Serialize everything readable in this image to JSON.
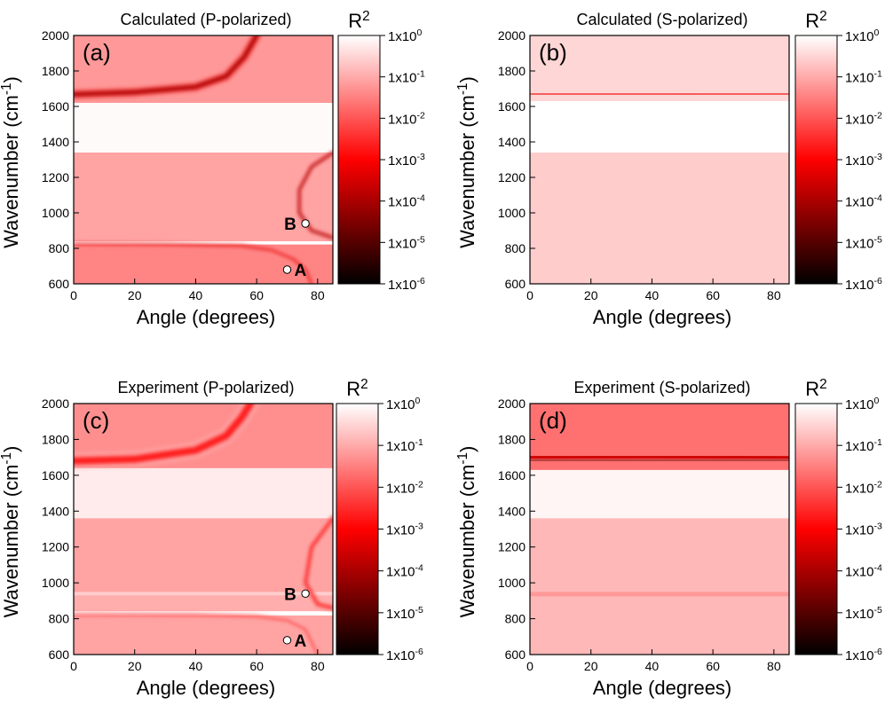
{
  "chart_data": [
    {
      "type": "heatmap",
      "panel_label": "(a)",
      "title": "Calculated (P-polarized)",
      "xlabel": "Angle (degrees)",
      "ylabel": "Wavenumber (cm",
      "ylabel_sup": "-1",
      "ylabel_end": ")",
      "xlim": [
        0,
        85
      ],
      "ylim": [
        600,
        2000
      ],
      "xticks": [
        0,
        20,
        40,
        60,
        80
      ],
      "yticks": [
        600,
        800,
        1000,
        1200,
        1400,
        1600,
        1800,
        2000
      ],
      "colorbar": {
        "title": "R",
        "title_sup": "2",
        "scale": "log",
        "range": [
          1e-06,
          1
        ],
        "ticks": [
          {
            "base": "1x10",
            "exp": "0"
          },
          {
            "base": "1x10",
            "exp": "-1"
          },
          {
            "base": "1x10",
            "exp": "-2"
          },
          {
            "base": "1x10",
            "exp": "-3"
          },
          {
            "base": "1x10",
            "exp": "-4"
          },
          {
            "base": "1x10",
            "exp": "-5"
          },
          {
            "base": "1x10",
            "exp": "-6"
          }
        ],
        "colors": [
          "#000000",
          "#ff0000",
          "#ffffff"
        ]
      },
      "bands": [
        {
          "y": [
            600,
            822
          ],
          "level": 0.76
        },
        {
          "y": [
            822,
            840
          ],
          "level": 1.0
        },
        {
          "y": [
            840,
            1340
          ],
          "level": 0.82
        },
        {
          "y": [
            1340,
            1620
          ],
          "level": 0.99
        },
        {
          "y": [
            1620,
            2000
          ],
          "level": 0.8
        }
      ],
      "features": [
        {
          "points": [
            [
              0,
              1668
            ],
            [
              20,
              1680
            ],
            [
              40,
              1710
            ],
            [
              50,
              1770
            ],
            [
              56,
              1880
            ],
            [
              60,
              2000
            ]
          ],
          "width": 26,
          "level": 0.35
        },
        {
          "points": [
            [
              0,
              826
            ],
            [
              30,
              823
            ],
            [
              55,
              815
            ],
            [
              65,
              790
            ],
            [
              72,
              740
            ],
            [
              76,
              680
            ],
            [
              78,
              600
            ]
          ],
          "width": 8,
          "level": 0.45
        },
        {
          "points": [
            [
              85,
              1340
            ],
            [
              78,
              1260
            ],
            [
              74,
              1130
            ],
            [
              74,
              1000
            ],
            [
              78,
              900
            ],
            [
              85,
              860
            ]
          ],
          "width": 8,
          "level": 0.3
        }
      ],
      "markers": [
        {
          "label": "A",
          "x": 70,
          "y": 680
        },
        {
          "label": "B",
          "x": 76,
          "y": 940
        }
      ]
    },
    {
      "type": "heatmap",
      "panel_label": "(b)",
      "title": "Calculated (S-polarized)",
      "xlabel": "Angle (degrees)",
      "ylabel": "Wavenumber (cm",
      "ylabel_sup": "-1",
      "ylabel_end": ")",
      "xlim": [
        0,
        85
      ],
      "ylim": [
        600,
        2000
      ],
      "xticks": [
        0,
        20,
        40,
        60,
        80
      ],
      "yticks": [
        600,
        800,
        1000,
        1200,
        1400,
        1600,
        1800,
        2000
      ],
      "colorbar": {
        "title": "R",
        "title_sup": "2",
        "scale": "log",
        "range": [
          1e-06,
          1
        ],
        "ticks": [
          {
            "base": "1x10",
            "exp": "0"
          },
          {
            "base": "1x10",
            "exp": "-1"
          },
          {
            "base": "1x10",
            "exp": "-2"
          },
          {
            "base": "1x10",
            "exp": "-3"
          },
          {
            "base": "1x10",
            "exp": "-4"
          },
          {
            "base": "1x10",
            "exp": "-5"
          },
          {
            "base": "1x10",
            "exp": "-6"
          }
        ],
        "colors": [
          "#000000",
          "#ff0000",
          "#ffffff"
        ]
      },
      "bands": [
        {
          "y": [
            600,
            1340
          ],
          "level": 0.9
        },
        {
          "y": [
            1340,
            1630
          ],
          "level": 1.0
        },
        {
          "y": [
            1630,
            2000
          ],
          "level": 0.92
        }
      ],
      "features": [
        {
          "points": [
            [
              0,
              1668
            ],
            [
              40,
              1668
            ],
            [
              70,
              1670
            ],
            [
              85,
              1672
            ]
          ],
          "width": 14,
          "level": 0.45
        }
      ],
      "markers": []
    },
    {
      "type": "heatmap",
      "panel_label": "(c)",
      "title": "Experiment (P-polarized)",
      "xlabel": "Angle (degrees)",
      "ylabel": "Wavenumber (cm",
      "ylabel_sup": "-1",
      "ylabel_end": ")",
      "xlim": [
        0,
        85
      ],
      "ylim": [
        600,
        2000
      ],
      "xticks": [
        0,
        20,
        40,
        60,
        80
      ],
      "yticks": [
        600,
        800,
        1000,
        1200,
        1400,
        1600,
        1800,
        2000
      ],
      "colorbar": {
        "title": "R",
        "title_sup": "2",
        "scale": "log",
        "range": [
          1e-06,
          1
        ],
        "ticks": [
          {
            "base": "1x10",
            "exp": "0"
          },
          {
            "base": "1x10",
            "exp": "-1"
          },
          {
            "base": "1x10",
            "exp": "-2"
          },
          {
            "base": "1x10",
            "exp": "-3"
          },
          {
            "base": "1x10",
            "exp": "-4"
          },
          {
            "base": "1x10",
            "exp": "-5"
          },
          {
            "base": "1x10",
            "exp": "-6"
          }
        ],
        "colors": [
          "#000000",
          "#ff0000",
          "#ffffff"
        ]
      },
      "bands": [
        {
          "y": [
            600,
            818
          ],
          "level": 0.82
        },
        {
          "y": [
            818,
            842
          ],
          "level": 1.0
        },
        {
          "y": [
            842,
            930
          ],
          "level": 0.84
        },
        {
          "y": [
            930,
            950
          ],
          "level": 0.9
        },
        {
          "y": [
            950,
            1360
          ],
          "level": 0.82
        },
        {
          "y": [
            1360,
            1640
          ],
          "level": 0.96
        },
        {
          "y": [
            1640,
            2000
          ],
          "level": 0.78
        }
      ],
      "features": [
        {
          "points": [
            [
              0,
              1680
            ],
            [
              20,
              1690
            ],
            [
              40,
              1740
            ],
            [
              50,
              1820
            ],
            [
              55,
              1920
            ],
            [
              58,
              2000
            ]
          ],
          "width": 40,
          "level": 0.55
        },
        {
          "points": [
            [
              0,
              822
            ],
            [
              40,
              820
            ],
            [
              60,
              812
            ],
            [
              70,
              790
            ],
            [
              76,
              740
            ],
            [
              80,
              600
            ]
          ],
          "width": 12,
          "level": 0.6
        },
        {
          "points": [
            [
              85,
              1360
            ],
            [
              78,
              1200
            ],
            [
              76,
              1000
            ],
            [
              80,
              880
            ],
            [
              85,
              860
            ]
          ],
          "width": 18,
          "level": 0.55
        }
      ],
      "markers": [
        {
          "label": "A",
          "x": 70,
          "y": 680
        },
        {
          "label": "B",
          "x": 76,
          "y": 940
        }
      ]
    },
    {
      "type": "heatmap",
      "panel_label": "(d)",
      "title": "Experiment (S-polarized)",
      "xlabel": "Angle (degrees)",
      "ylabel": "Wavenumber (cm",
      "ylabel_sup": "-1",
      "ylabel_end": ")",
      "xlim": [
        0,
        85
      ],
      "ylim": [
        600,
        2000
      ],
      "xticks": [
        0,
        20,
        40,
        60,
        80
      ],
      "yticks": [
        600,
        800,
        1000,
        1200,
        1400,
        1600,
        1800,
        2000
      ],
      "colorbar": {
        "title": "R",
        "title_sup": "2",
        "scale": "log",
        "range": [
          1e-06,
          1
        ],
        "ticks": [
          {
            "base": "1x10",
            "exp": "0"
          },
          {
            "base": "1x10",
            "exp": "-1"
          },
          {
            "base": "1x10",
            "exp": "-2"
          },
          {
            "base": "1x10",
            "exp": "-3"
          },
          {
            "base": "1x10",
            "exp": "-4"
          },
          {
            "base": "1x10",
            "exp": "-5"
          },
          {
            "base": "1x10",
            "exp": "-6"
          }
        ],
        "colors": [
          "#000000",
          "#ff0000",
          "#ffffff"
        ]
      },
      "bands": [
        {
          "y": [
            600,
            925
          ],
          "level": 0.86
        },
        {
          "y": [
            925,
            950
          ],
          "level": 0.8
        },
        {
          "y": [
            950,
            1360
          ],
          "level": 0.86
        },
        {
          "y": [
            1360,
            1630
          ],
          "level": 0.98
        },
        {
          "y": [
            1630,
            2000
          ],
          "level": 0.72
        }
      ],
      "features": [
        {
          "points": [
            [
              0,
              1682
            ],
            [
              40,
              1682
            ],
            [
              70,
              1684
            ],
            [
              85,
              1685
            ]
          ],
          "width": 22,
          "level": 0.12
        },
        {
          "points": [
            [
              0,
              1700
            ],
            [
              40,
              1705
            ],
            [
              70,
              1700
            ],
            [
              85,
              1695
            ]
          ],
          "width": 40,
          "level": 0.4
        }
      ],
      "markers": []
    }
  ]
}
